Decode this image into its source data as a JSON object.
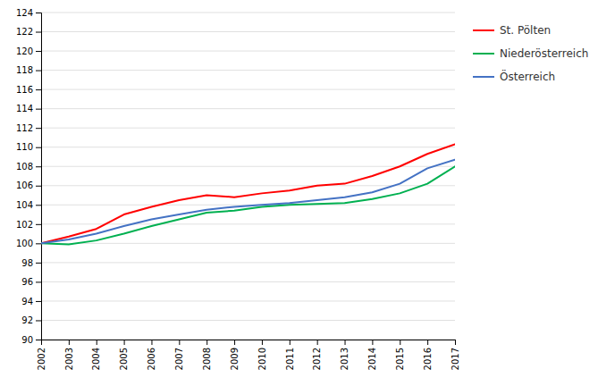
{
  "chart_data": {
    "type": "line",
    "x": [
      2002,
      2003,
      2004,
      2005,
      2006,
      2007,
      2008,
      2009,
      2010,
      2011,
      2012,
      2013,
      2014,
      2015,
      2016,
      2017
    ],
    "series": [
      {
        "name": "St. Pölten",
        "color": "#ff0000",
        "values": [
          100.0,
          100.7,
          101.5,
          103.0,
          103.8,
          104.5,
          105.0,
          104.8,
          105.2,
          105.5,
          106.0,
          106.2,
          107.0,
          108.0,
          109.3,
          110.3
        ]
      },
      {
        "name": "Niederösterreich",
        "color": "#00b050",
        "values": [
          100.0,
          99.9,
          100.3,
          101.0,
          101.8,
          102.5,
          103.2,
          103.4,
          103.8,
          104.0,
          104.1,
          104.2,
          104.6,
          105.2,
          106.2,
          108.0
        ]
      },
      {
        "name": "Österreich",
        "color": "#4472c4",
        "values": [
          100.0,
          100.4,
          101.0,
          101.8,
          102.5,
          103.0,
          103.5,
          103.8,
          104.0,
          104.2,
          104.5,
          104.8,
          105.3,
          106.2,
          107.8,
          108.7
        ]
      }
    ],
    "xlim": [
      2002,
      2017
    ],
    "xticks": [
      2002,
      2003,
      2004,
      2005,
      2006,
      2007,
      2008,
      2009,
      2010,
      2011,
      2012,
      2013,
      2014,
      2015,
      2016,
      2017
    ],
    "ylim": [
      90,
      124
    ],
    "yticks": [
      90,
      92,
      94,
      96,
      98,
      100,
      102,
      104,
      106,
      108,
      110,
      112,
      114,
      116,
      118,
      120,
      122,
      124
    ],
    "grid": true,
    "legend": "right"
  }
}
